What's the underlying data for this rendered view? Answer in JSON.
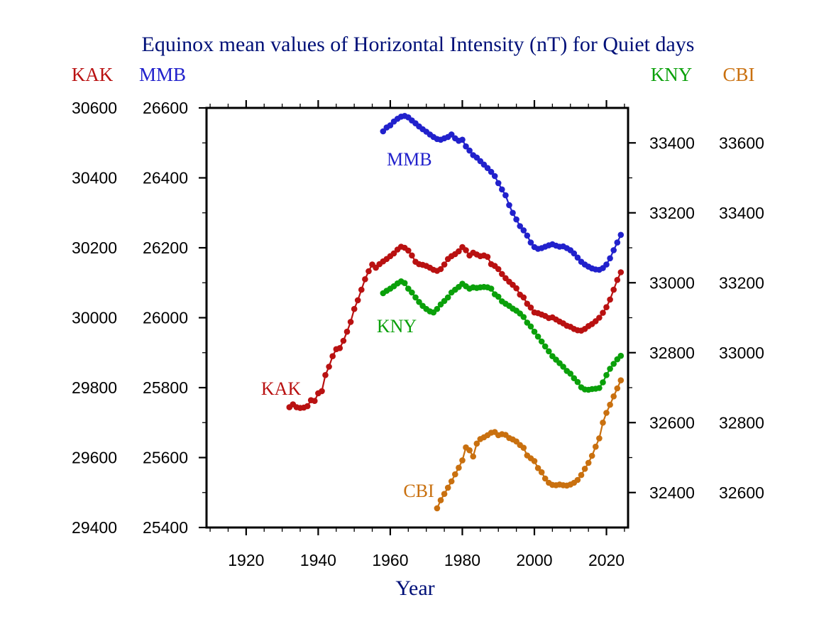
{
  "header": {
    "left": [
      {
        "label": "KAK"
      },
      {
        "label": "MMB"
      }
    ],
    "right": [
      {
        "label": "KNY"
      },
      {
        "label": "CBI"
      }
    ]
  },
  "chart_data": {
    "type": "line",
    "title": "Equinox mean values of Horizontal Intensity (nT) for Quiet days",
    "xlabel": "Year",
    "grid": false,
    "x": {
      "range": [
        1909,
        2026
      ],
      "ticks_major": [
        1920,
        1940,
        1960,
        1980,
        2000,
        2020
      ],
      "tick_labels": [
        "1920",
        "1940",
        "1960",
        "1980",
        "2000",
        "2020"
      ],
      "minor_step": 5
    },
    "series": [
      {
        "id": "KAK",
        "label": "KAK",
        "color": "#b91111",
        "axis_side": "left",
        "axis_range": [
          29400,
          30600
        ],
        "tick_label_values": [
          30600,
          30400,
          30200,
          30000,
          29800,
          29600,
          29400
        ],
        "inline_label": {
          "year": 1929.7,
          "value": 29798
        },
        "start_year": 1932,
        "values": [
          29744,
          29752,
          29744,
          29742,
          29743,
          29747,
          29764,
          29762,
          29784,
          29790,
          29836,
          29860,
          29890,
          29910,
          29913,
          29934,
          29960,
          29988,
          30025,
          30050,
          30080,
          30110,
          30133,
          30152,
          30143,
          30153,
          30161,
          30168,
          30176,
          30184,
          30195,
          30203,
          30200,
          30192,
          30178,
          30160,
          30153,
          30151,
          30148,
          30143,
          30137,
          30134,
          30139,
          30152,
          30168,
          30176,
          30182,
          30190,
          30202,
          30193,
          30178,
          30186,
          30181,
          30176,
          30178,
          30174,
          30153,
          30148,
          30139,
          30125,
          30113,
          30103,
          30094,
          30084,
          30066,
          30058,
          30040,
          30029,
          30015,
          30013,
          30009,
          30005,
          29999,
          30001,
          29995,
          29989,
          29984,
          29977,
          29974,
          29968,
          29964,
          29963,
          29968,
          29976,
          29982,
          29990,
          30000,
          30014,
          30030,
          30052,
          30080,
          30108,
          30130
        ]
      },
      {
        "id": "MMB",
        "label": "MMB",
        "color": "#2121cc",
        "axis_side": "left",
        "axis_range": [
          25400,
          26600
        ],
        "tick_label_values": [
          26600,
          26400,
          26200,
          26000,
          25800,
          25600,
          25400
        ],
        "inline_label": {
          "year": 1965.3,
          "value": 26454
        },
        "start_year": 1958,
        "values": [
          26533,
          26544,
          26550,
          26561,
          26569,
          26575,
          26577,
          26573,
          26564,
          26556,
          26547,
          26539,
          26532,
          26524,
          26517,
          26511,
          26509,
          26513,
          26517,
          26524,
          26513,
          26506,
          26509,
          26490,
          26478,
          26465,
          26458,
          26448,
          26438,
          26428,
          26417,
          26405,
          26385,
          26367,
          26350,
          26322,
          26300,
          26281,
          26262,
          26250,
          26235,
          26215,
          26202,
          26197,
          26199,
          26203,
          26207,
          26210,
          26206,
          26203,
          26204,
          26199,
          26193,
          26184,
          26172,
          26160,
          26152,
          26146,
          26141,
          26138,
          26137,
          26142,
          26152,
          26170,
          26193,
          26215,
          26237
        ]
      },
      {
        "id": "KNY",
        "label": "KNY",
        "color": "#0aa00a",
        "axis_side": "right",
        "axis_range": [
          32300,
          33500
        ],
        "tick_label_values": [
          33400,
          33200,
          33000,
          32800,
          32600,
          32400
        ],
        "inline_label": {
          "year": 1961.8,
          "value": 32877
        },
        "start_year": 1958,
        "values": [
          32970,
          32977,
          32983,
          32990,
          32998,
          33004,
          32999,
          32983,
          32972,
          32958,
          32945,
          32934,
          32925,
          32918,
          32915,
          32925,
          32938,
          32948,
          32958,
          32972,
          32980,
          32988,
          32997,
          32990,
          32983,
          32987,
          32985,
          32987,
          32988,
          32987,
          32983,
          32967,
          32960,
          32947,
          32940,
          32934,
          32926,
          32920,
          32912,
          32902,
          32886,
          32875,
          32860,
          32846,
          32832,
          32818,
          32804,
          32790,
          32780,
          32770,
          32760,
          32748,
          32740,
          32727,
          32716,
          32701,
          32695,
          32694,
          32696,
          32697,
          32699,
          32715,
          32736,
          32754,
          32768,
          32781,
          32791
        ]
      },
      {
        "id": "CBI",
        "label": "CBI",
        "color": "#c9700f",
        "axis_side": "right",
        "axis_range": [
          32500,
          33700
        ],
        "tick_label_values": [
          33600,
          33400,
          33200,
          33000,
          32800,
          32600
        ],
        "inline_label": {
          "year": 1967.9,
          "value": 32606
        },
        "start_year": 1973,
        "values": [
          32555,
          32578,
          32596,
          32614,
          32632,
          32652,
          32671,
          32692,
          32729,
          32721,
          32703,
          32740,
          32753,
          32758,
          32764,
          32771,
          32773,
          32764,
          32767,
          32765,
          32756,
          32752,
          32746,
          32736,
          32728,
          32706,
          32698,
          32690,
          32670,
          32658,
          32640,
          32628,
          32622,
          32621,
          32623,
          32621,
          32620,
          32623,
          32628,
          32636,
          32650,
          32668,
          32685,
          32705,
          32731,
          32755,
          32800,
          32828,
          32851,
          32875,
          32898,
          32921
        ]
      }
    ]
  }
}
